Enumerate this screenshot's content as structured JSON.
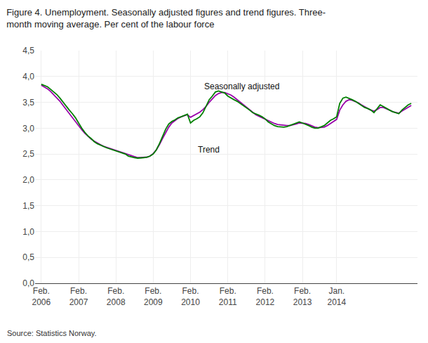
{
  "chart_data": {
    "type": "line",
    "title": "Figure 4. Unemployment. Seasonally adjusted figures and trend figures. Three-\nmonth moving average. Per cent of the labour force",
    "categories": [
      "Feb.\n2006",
      null,
      null,
      null,
      null,
      null,
      null,
      null,
      null,
      null,
      null,
      null,
      "Feb.\n2007",
      null,
      null,
      null,
      null,
      null,
      null,
      null,
      null,
      null,
      null,
      null,
      "Feb.\n2008",
      null,
      null,
      null,
      null,
      null,
      null,
      null,
      null,
      null,
      null,
      null,
      "Feb.\n2009",
      null,
      null,
      null,
      null,
      null,
      null,
      null,
      null,
      null,
      null,
      null,
      "Feb.\n2010",
      null,
      null,
      null,
      null,
      null,
      null,
      null,
      null,
      null,
      null,
      null,
      "Feb.\n2011",
      null,
      null,
      null,
      null,
      null,
      null,
      null,
      null,
      null,
      null,
      null,
      "Feb.\n2012",
      null,
      null,
      null,
      null,
      null,
      null,
      null,
      null,
      null,
      null,
      null,
      "Feb.\n2013",
      null,
      null,
      null,
      null,
      null,
      null,
      null,
      null,
      null,
      null,
      "Jan.\n2014",
      null,
      null,
      null,
      null,
      null,
      null,
      null,
      null,
      null,
      null,
      null,
      null,
      null,
      null,
      null,
      null,
      null,
      null,
      null,
      null,
      null,
      null,
      null,
      null
    ],
    "series": [
      {
        "color": "#9900aa",
        "values": [
          3.83,
          3.8,
          3.76,
          3.71,
          3.65,
          3.59,
          3.52,
          3.44,
          3.36,
          3.28,
          3.2,
          3.12,
          3.04,
          2.97,
          2.9,
          2.84,
          2.79,
          2.75,
          2.71,
          2.68,
          2.65,
          2.63,
          2.61,
          2.59,
          2.57,
          2.55,
          2.53,
          2.5,
          2.48,
          2.46,
          2.44,
          2.43,
          2.43,
          2.43,
          2.44,
          2.46,
          2.51,
          2.58,
          2.68,
          2.8,
          2.92,
          3.02,
          3.1,
          3.15,
          3.19,
          3.22,
          3.24,
          3.26,
          3.21,
          3.24,
          3.27,
          3.31,
          3.36,
          3.42,
          3.5,
          3.57,
          3.63,
          3.67,
          3.69,
          3.69,
          3.67,
          3.64,
          3.6,
          3.55,
          3.5,
          3.45,
          3.4,
          3.35,
          3.3,
          3.26,
          3.23,
          3.2,
          3.17,
          3.14,
          3.11,
          3.09,
          3.07,
          3.06,
          3.05,
          3.05,
          3.05,
          3.06,
          3.08,
          3.1,
          3.1,
          3.09,
          3.07,
          3.04,
          3.02,
          3.01,
          3.01,
          3.02,
          3.05,
          3.09,
          3.13,
          3.17,
          3.35,
          3.45,
          3.52,
          3.55,
          3.54,
          3.52,
          3.49,
          3.45,
          3.41,
          3.38,
          3.35,
          3.33,
          3.36,
          3.4,
          3.4,
          3.38,
          3.35,
          3.32,
          3.3,
          3.29,
          3.33,
          3.37,
          3.41,
          3.44
        ]
      },
      {
        "color": "#008000",
        "values": [
          3.85,
          3.82,
          3.8,
          3.75,
          3.7,
          3.65,
          3.58,
          3.5,
          3.42,
          3.35,
          3.28,
          3.2,
          3.1,
          3.0,
          2.92,
          2.85,
          2.8,
          2.74,
          2.7,
          2.67,
          2.64,
          2.62,
          2.6,
          2.58,
          2.57,
          2.55,
          2.52,
          2.5,
          2.46,
          2.44,
          2.43,
          2.42,
          2.42,
          2.43,
          2.44,
          2.46,
          2.5,
          2.58,
          2.7,
          2.85,
          2.98,
          3.08,
          3.13,
          3.16,
          3.2,
          3.22,
          3.24,
          3.27,
          3.1,
          3.15,
          3.18,
          3.22,
          3.3,
          3.42,
          3.55,
          3.62,
          3.7,
          3.72,
          3.7,
          3.68,
          3.62,
          3.58,
          3.55,
          3.52,
          3.48,
          3.44,
          3.4,
          3.35,
          3.3,
          3.28,
          3.25,
          3.22,
          3.18,
          3.12,
          3.08,
          3.05,
          3.03,
          3.02,
          3.02,
          3.03,
          3.05,
          3.08,
          3.1,
          3.12,
          3.1,
          3.08,
          3.05,
          3.02,
          3.0,
          3.0,
          3.02,
          3.05,
          3.1,
          3.15,
          3.18,
          3.22,
          3.48,
          3.58,
          3.6,
          3.58,
          3.55,
          3.52,
          3.48,
          3.43,
          3.4,
          3.38,
          3.35,
          3.3,
          3.38,
          3.45,
          3.42,
          3.38,
          3.35,
          3.32,
          3.3,
          3.28,
          3.35,
          3.4,
          3.45,
          3.48
        ]
      }
    ],
    "xlim": [
      -2,
      121
    ],
    "ylim": [
      0.0,
      4.5
    ],
    "yticks": [
      {
        "value": 0.0,
        "label": "0,0"
      },
      {
        "value": 0.5,
        "label": "0,5"
      },
      {
        "value": 1.0,
        "label": "1,0"
      },
      {
        "value": 1.5,
        "label": "1,5"
      },
      {
        "value": 2.0,
        "label": "2,0"
      },
      {
        "value": 2.5,
        "label": "2,5"
      },
      {
        "value": 3.0,
        "label": "3,0"
      },
      {
        "value": 3.5,
        "label": "3,5"
      },
      {
        "value": 4.0,
        "label": "4,0"
      },
      {
        "value": 4.5,
        "label": "4,5"
      }
    ],
    "grid": true,
    "annotations": [
      {
        "text": "Seasonally adjusted",
        "x": 52,
        "y": 3.8
      },
      {
        "text": "Trend",
        "x": 50,
        "y": 2.58
      },
      {
        "text": "Source: Statistics Norway."
      }
    ]
  }
}
